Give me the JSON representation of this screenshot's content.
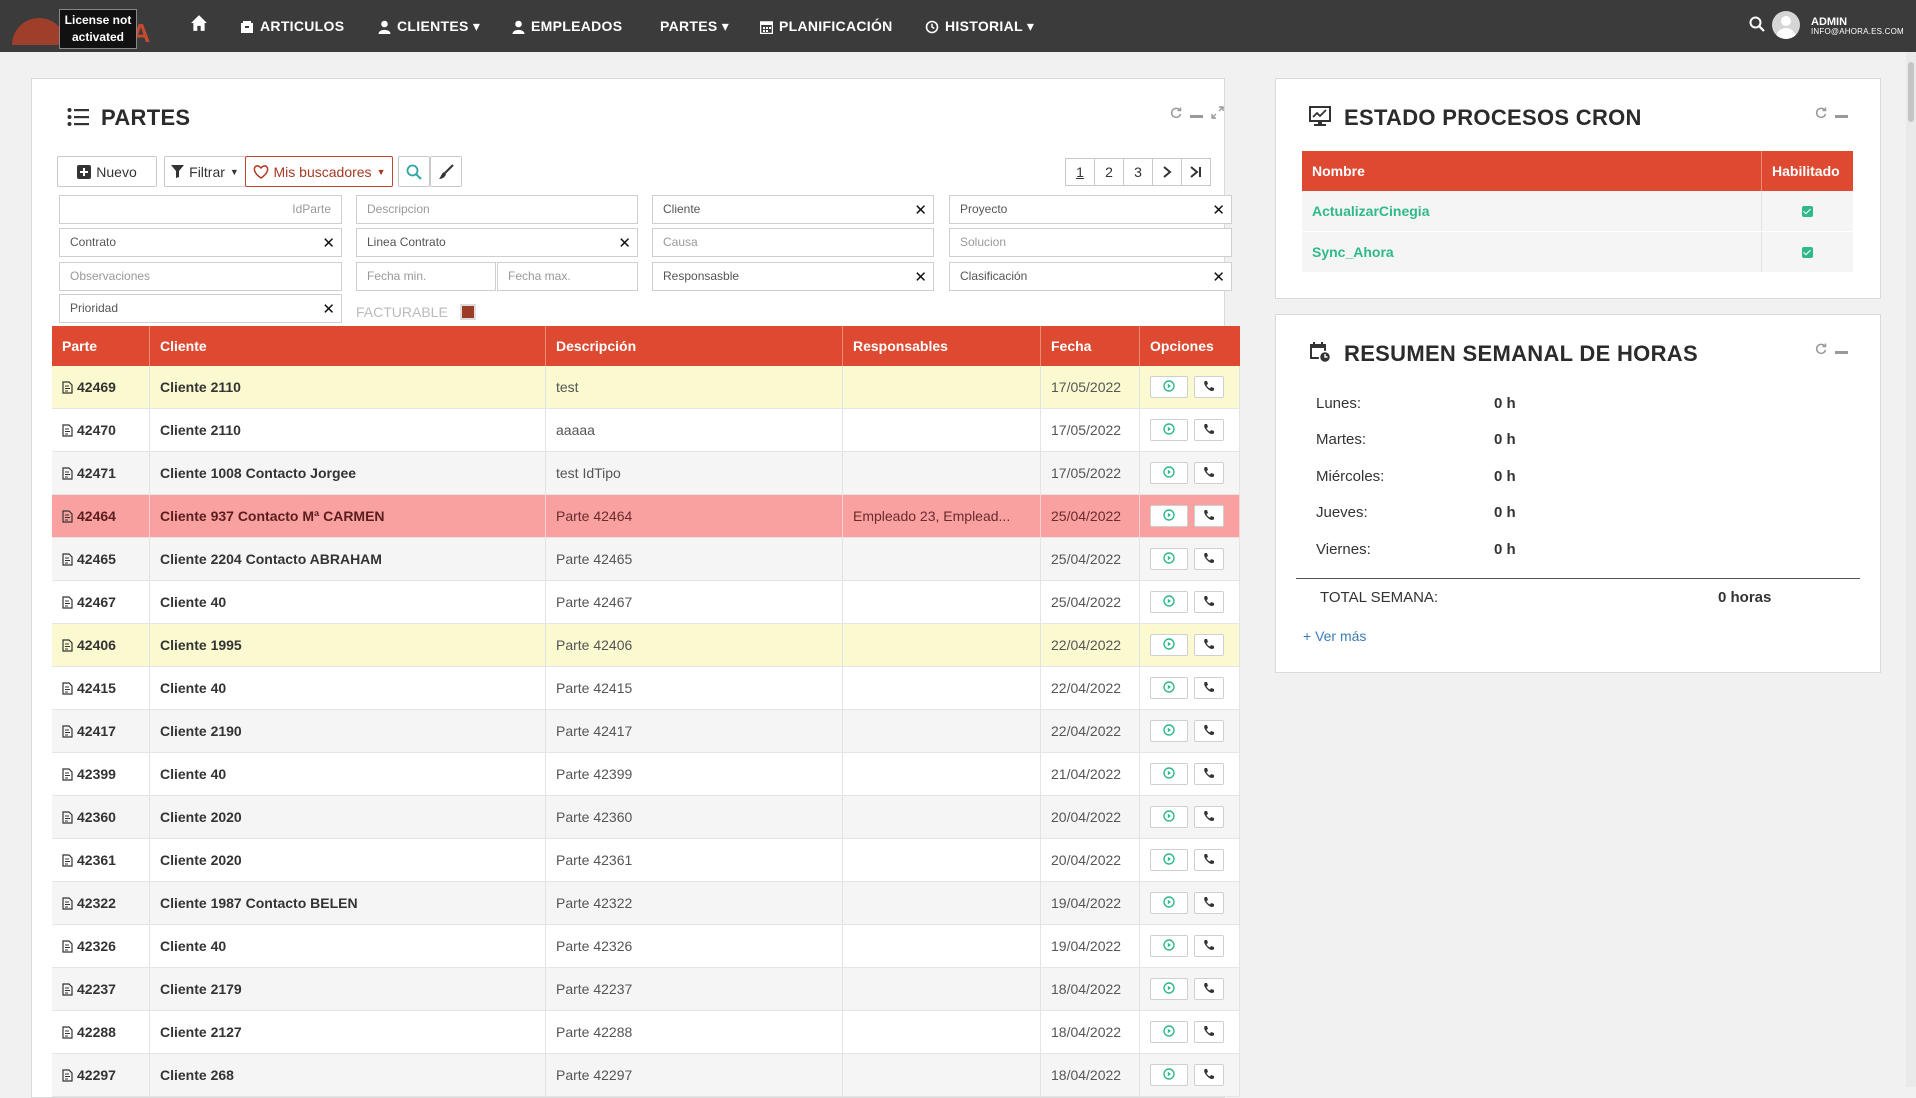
{
  "nav": {
    "license_line1": "License not",
    "license_line2": "activated",
    "brand_suffix": "GIA",
    "items": [
      {
        "label": "ARTICULOS",
        "icon": "box-icon"
      },
      {
        "label": "CLIENTES ▾",
        "icon": "user-icon"
      },
      {
        "label": "EMPLEADOS",
        "icon": "user-icon"
      },
      {
        "label": "PARTES ▾",
        "icon": ""
      },
      {
        "label": "PLANIFICACIÓN",
        "icon": "calendar-icon"
      },
      {
        "label": "HISTORIAL ▾",
        "icon": "history-icon"
      }
    ],
    "user_name": "ADMIN",
    "user_email": "INFO@AHORA.ES.COM"
  },
  "partes": {
    "title": "PARTES",
    "toolbar": {
      "nuevo": "Nuevo",
      "filtrar": "Filtrar",
      "mis_buscadores": "Mis buscadores"
    },
    "pages": [
      "1",
      "2",
      "3"
    ],
    "filters": {
      "idparte": "IdParte",
      "descripcion": "Descripcion",
      "cliente": "Cliente",
      "proyecto": "Proyecto",
      "contrato": "Contrato",
      "linea_contrato": "Linea Contrato",
      "causa": "Causa",
      "solucion": "Solucion",
      "observaciones": "Observaciones",
      "fecha_min": "Fecha min.",
      "fecha_max": "Fecha max.",
      "responsable": "Responsasble",
      "clasificacion": "Clasificación",
      "prioridad": "Prioridad",
      "facturable": "FACTURABLE"
    },
    "columns": [
      "Parte",
      "Cliente",
      "Descripción",
      "Responsables",
      "Fecha",
      "Opciones"
    ],
    "rows": [
      {
        "parte": "42469",
        "cliente": "Cliente 2110",
        "descripcion": "test",
        "responsables": "",
        "fecha": "17/05/2022",
        "style": "yellow"
      },
      {
        "parte": "42470",
        "cliente": "Cliente 2110",
        "descripcion": "aaaaa",
        "responsables": "",
        "fecha": "17/05/2022",
        "style": "white"
      },
      {
        "parte": "42471",
        "cliente": "Cliente 1008 Contacto Jorgee",
        "descripcion": "test IdTipo",
        "responsables": "",
        "fecha": "17/05/2022",
        "style": "alt"
      },
      {
        "parte": "42464",
        "cliente": "Cliente 937 Contacto Mª CARMEN",
        "descripcion": "Parte 42464",
        "responsables": "Empleado 23, Emplead...",
        "fecha": "25/04/2022",
        "style": "pink"
      },
      {
        "parte": "42465",
        "cliente": "Cliente 2204 Contacto ABRAHAM",
        "descripcion": "Parte 42465",
        "responsables": "",
        "fecha": "25/04/2022",
        "style": "alt"
      },
      {
        "parte": "42467",
        "cliente": "Cliente 40",
        "descripcion": "Parte 42467",
        "responsables": "",
        "fecha": "25/04/2022",
        "style": "white"
      },
      {
        "parte": "42406",
        "cliente": "Cliente 1995",
        "descripcion": "Parte 42406",
        "responsables": "",
        "fecha": "22/04/2022",
        "style": "yellow"
      },
      {
        "parte": "42415",
        "cliente": "Cliente 40",
        "descripcion": "Parte 42415",
        "responsables": "",
        "fecha": "22/04/2022",
        "style": "white"
      },
      {
        "parte": "42417",
        "cliente": "Cliente 2190",
        "descripcion": "Parte 42417",
        "responsables": "",
        "fecha": "22/04/2022",
        "style": "alt"
      },
      {
        "parte": "42399",
        "cliente": "Cliente 40",
        "descripcion": "Parte 42399",
        "responsables": "",
        "fecha": "21/04/2022",
        "style": "white"
      },
      {
        "parte": "42360",
        "cliente": "Cliente 2020",
        "descripcion": "Parte 42360",
        "responsables": "",
        "fecha": "20/04/2022",
        "style": "alt"
      },
      {
        "parte": "42361",
        "cliente": "Cliente 2020",
        "descripcion": "Parte 42361",
        "responsables": "",
        "fecha": "20/04/2022",
        "style": "white"
      },
      {
        "parte": "42322",
        "cliente": "Cliente 1987 Contacto BELEN",
        "descripcion": "Parte 42322",
        "responsables": "",
        "fecha": "19/04/2022",
        "style": "alt"
      },
      {
        "parte": "42326",
        "cliente": "Cliente 40",
        "descripcion": "Parte 42326",
        "responsables": "",
        "fecha": "19/04/2022",
        "style": "white"
      },
      {
        "parte": "42237",
        "cliente": "Cliente 2179",
        "descripcion": "Parte 42237",
        "responsables": "",
        "fecha": "18/04/2022",
        "style": "alt"
      },
      {
        "parte": "42288",
        "cliente": "Cliente 2127",
        "descripcion": "Parte 42288",
        "responsables": "",
        "fecha": "18/04/2022",
        "style": "white"
      },
      {
        "parte": "42297",
        "cliente": "Cliente 268",
        "descripcion": "Parte 42297",
        "responsables": "",
        "fecha": "18/04/2022",
        "style": "alt"
      }
    ]
  },
  "cron": {
    "title": "ESTADO PROCESOS CRON",
    "columns": [
      "Nombre",
      "Habilitado"
    ],
    "rows": [
      {
        "nombre": "ActualizarCinegia",
        "habilitado": true
      },
      {
        "nombre": "Sync_Ahora",
        "habilitado": true
      }
    ]
  },
  "resumen": {
    "title": "RESUMEN SEMANAL DE HORAS",
    "days": [
      {
        "label": "Lunes:",
        "value": "0 h"
      },
      {
        "label": "Martes:",
        "value": "0 h"
      },
      {
        "label": "Miércoles:",
        "value": "0 h"
      },
      {
        "label": "Jueves:",
        "value": "0 h"
      },
      {
        "label": "Viernes:",
        "value": "0 h"
      }
    ],
    "total_label": "TOTAL SEMANA:",
    "total_value": "0 horas",
    "ver_mas": "+ Ver más"
  },
  "colors": {
    "accent": "#dd4a31",
    "nav_bg": "#3b3b3b",
    "row_yellow": "#fbf9d0",
    "row_pink": "#f9a0a0",
    "cron_link": "#2fb98b"
  }
}
